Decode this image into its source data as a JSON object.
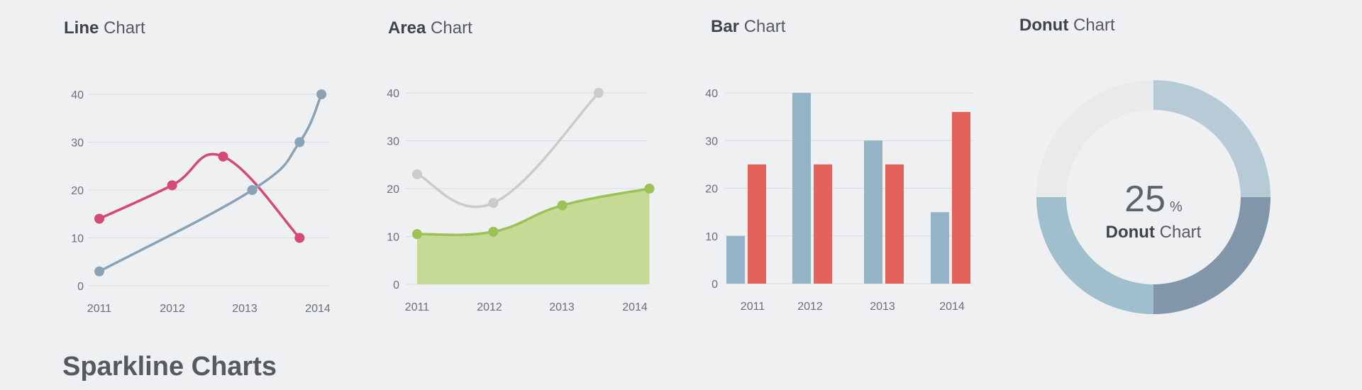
{
  "section_title": "Sparkline Charts",
  "chart_data": [
    {
      "type": "line",
      "title_bold": "Line",
      "title_rest": " Chart",
      "categories": [
        "2011",
        "2012",
        "2013",
        "2014"
      ],
      "yticks": [
        0,
        10,
        20,
        30,
        40
      ],
      "ylim": [
        0,
        40
      ],
      "series": [
        {
          "color": "#d34a78",
          "x": [
            2011.0,
            2012.0,
            2012.7,
            2013.75
          ],
          "y": [
            14,
            21,
            27,
            10
          ]
        },
        {
          "color": "#8aa2b5",
          "x": [
            2011.0,
            2013.1,
            2013.75,
            2014.05
          ],
          "y": [
            3,
            20,
            30,
            40
          ]
        }
      ]
    },
    {
      "type": "area",
      "title_bold": "Area",
      "title_rest": " Chart",
      "categories": [
        "2011",
        "2012",
        "2013",
        "2014"
      ],
      "yticks": [
        0,
        10,
        20,
        30,
        40
      ],
      "ylim": [
        0,
        40
      ],
      "series": [
        {
          "color": "#c9cbcd",
          "fill": false,
          "x": [
            2011.0,
            2012.05,
            2013.5
          ],
          "y": [
            23,
            17,
            40
          ]
        },
        {
          "color": "#9cc154",
          "fill": true,
          "fill_color": "#c6da96",
          "x": [
            2011.0,
            2012.05,
            2013.0,
            2014.2
          ],
          "y": [
            10.5,
            11,
            16.5,
            20
          ]
        }
      ]
    },
    {
      "type": "bar",
      "title_bold": "Bar",
      "title_rest": " Chart",
      "categories": [
        "2011",
        "2012",
        "2013",
        "2014"
      ],
      "yticks": [
        0,
        10,
        20,
        30,
        40
      ],
      "ylim": [
        0,
        40
      ],
      "series": [
        {
          "color": "#93b4c4",
          "values": [
            10,
            40,
            30,
            15
          ]
        },
        {
          "color": "#e5625c",
          "values": [
            25,
            25,
            25,
            36
          ]
        }
      ]
    },
    {
      "type": "pie",
      "title_bold": "Donut",
      "title_rest": " Chart",
      "center_value": "25",
      "center_unit": "%",
      "center_label_bold": "Donut",
      "center_label_rest": " Chart",
      "values": [
        25,
        25,
        25,
        25
      ],
      "colors": [
        "#b7cbd7",
        "#8296aa",
        "#9fbfcd",
        "#e8eaec"
      ]
    }
  ]
}
